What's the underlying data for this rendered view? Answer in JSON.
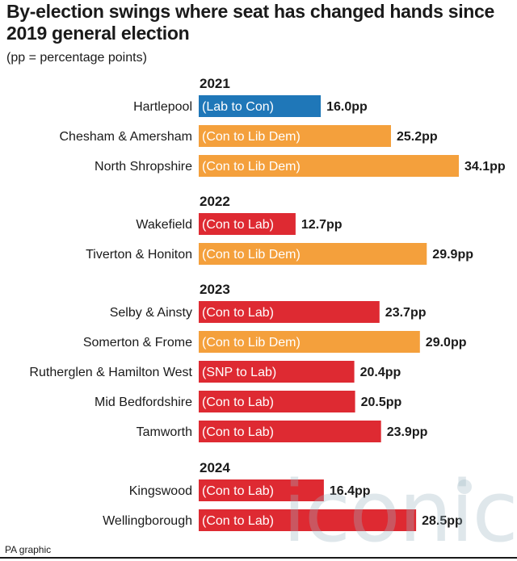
{
  "title": "By-election swings where seat has changed hands since 2019 general election",
  "subtitle": "(pp = percentage points)",
  "footer": "PA graphic",
  "watermark": "iconic",
  "colors": {
    "Lab to Con": "#1f77b8",
    "Con to Lib Dem": "#f4a03c",
    "Con to Lab": "#de2a32",
    "SNP to Lab": "#de2a32"
  },
  "chart_data": {
    "type": "bar",
    "orientation": "horizontal",
    "unit": "pp",
    "xlim": [
      0,
      34.1
    ],
    "groups": [
      {
        "year": "2021",
        "bars": [
          {
            "seat": "Hartlepool",
            "swing": "(Lab to Con)",
            "value": 16.0,
            "label": "16.0pp"
          },
          {
            "seat": "Chesham & Amersham",
            "swing": "(Con to Lib Dem)",
            "value": 25.2,
            "label": "25.2pp"
          },
          {
            "seat": "North Shropshire",
            "swing": "(Con to Lib Dem)",
            "value": 34.1,
            "label": "34.1pp"
          }
        ]
      },
      {
        "year": "2022",
        "bars": [
          {
            "seat": "Wakefield",
            "swing": "(Con to Lab)",
            "value": 12.7,
            "label": "12.7pp"
          },
          {
            "seat": "Tiverton & Honiton",
            "swing": "(Con to Lib Dem)",
            "value": 29.9,
            "label": "29.9pp"
          }
        ]
      },
      {
        "year": "2023",
        "bars": [
          {
            "seat": "Selby & Ainsty",
            "swing": "(Con to Lab)",
            "value": 23.7,
            "label": "23.7pp"
          },
          {
            "seat": "Somerton & Frome",
            "swing": "(Con to Lib Dem)",
            "value": 29.0,
            "label": "29.0pp"
          },
          {
            "seat": "Rutherglen & Hamilton West",
            "swing": "(SNP to Lab)",
            "value": 20.4,
            "label": "20.4pp"
          },
          {
            "seat": "Mid Bedfordshire",
            "swing": "(Con to Lab)",
            "value": 20.5,
            "label": "20.5pp"
          },
          {
            "seat": "Tamworth",
            "swing": "(Con to Lab)",
            "value": 23.9,
            "label": "23.9pp"
          }
        ]
      },
      {
        "year": "2024",
        "bars": [
          {
            "seat": "Kingswood",
            "swing": "(Con to Lab)",
            "value": 16.4,
            "label": "16.4pp"
          },
          {
            "seat": "Wellingborough",
            "swing": "(Con to Lab)",
            "value": 28.5,
            "label": "28.5pp"
          }
        ]
      }
    ]
  }
}
